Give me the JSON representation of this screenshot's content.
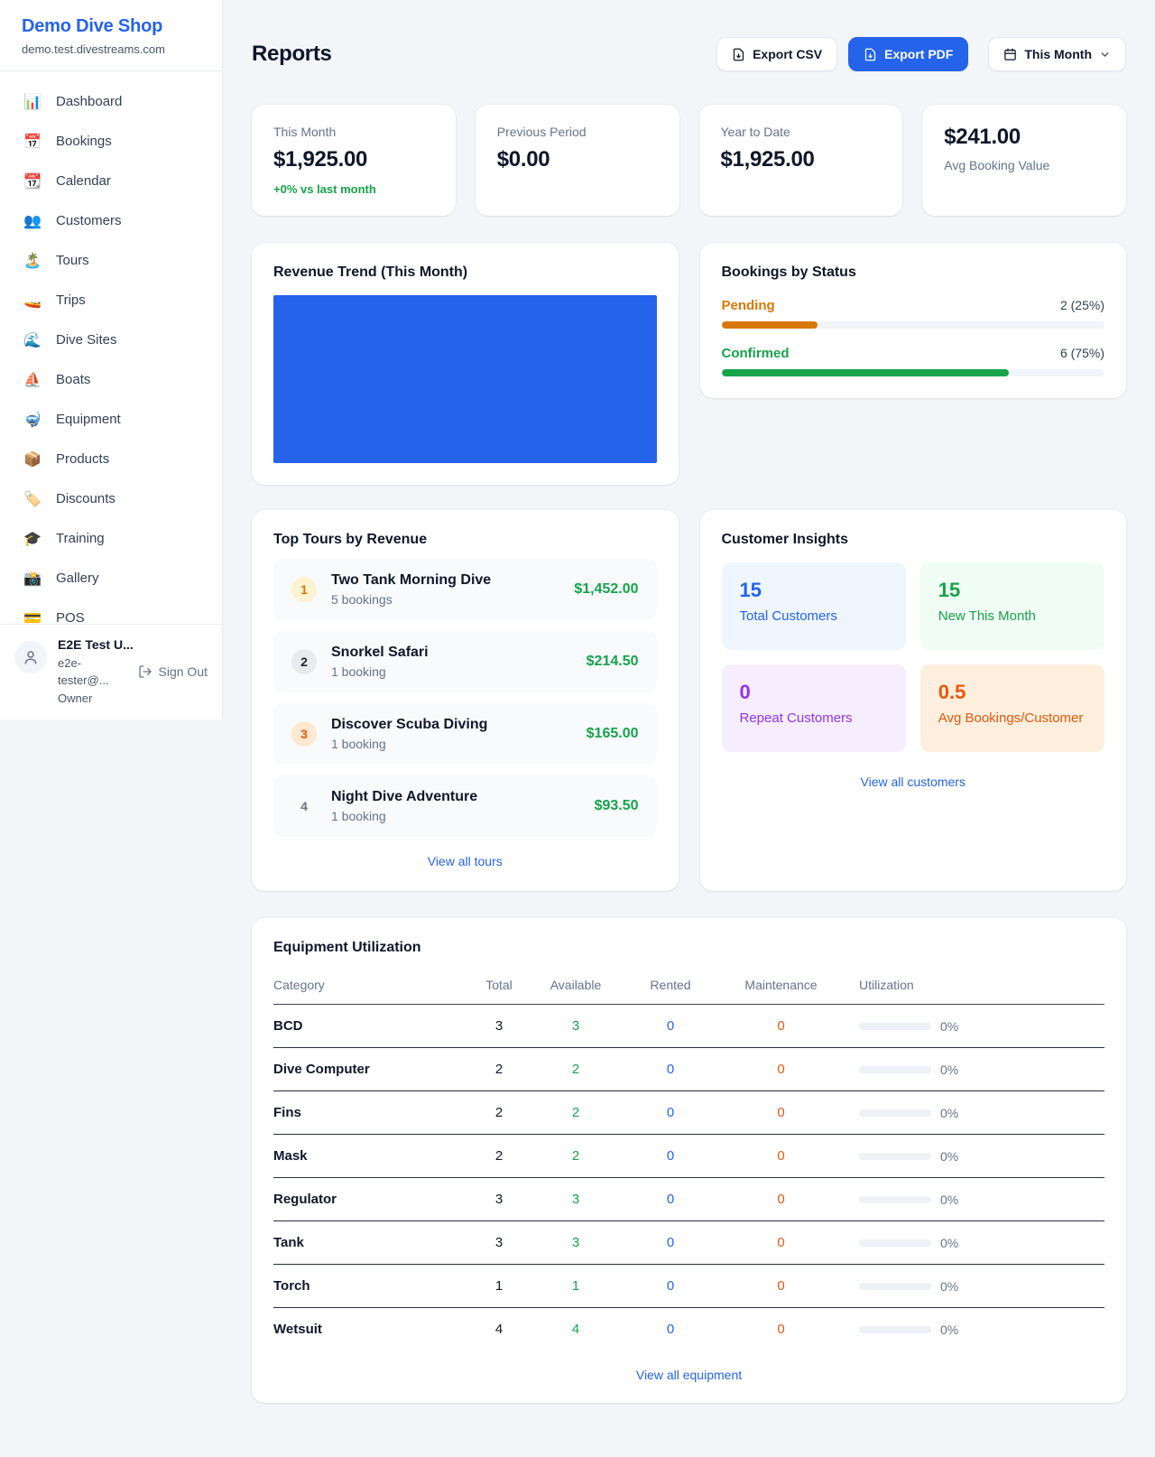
{
  "brand": {
    "name": "Demo Dive Shop",
    "domain": "demo.test.divestreams.com"
  },
  "sidebar": {
    "items": [
      {
        "label": "Dashboard",
        "icon": "bar-chart-icon",
        "glyph": "📊"
      },
      {
        "label": "Bookings",
        "icon": "calendar-icon",
        "glyph": "📅"
      },
      {
        "label": "Calendar",
        "icon": "tear-off-calendar-icon",
        "glyph": "📆"
      },
      {
        "label": "Customers",
        "icon": "people-icon",
        "glyph": "👥"
      },
      {
        "label": "Tours",
        "icon": "desert-island-icon",
        "glyph": "🏝️"
      },
      {
        "label": "Trips",
        "icon": "speedboat-icon",
        "glyph": "🚤"
      },
      {
        "label": "Dive Sites",
        "icon": "wave-icon",
        "glyph": "🌊"
      },
      {
        "label": "Boats",
        "icon": "sailboat-icon",
        "glyph": "⛵"
      },
      {
        "label": "Equipment",
        "icon": "diving-mask-icon",
        "glyph": "🤿"
      },
      {
        "label": "Products",
        "icon": "package-icon",
        "glyph": "📦"
      },
      {
        "label": "Discounts",
        "icon": "tag-icon",
        "glyph": "🏷️"
      },
      {
        "label": "Training",
        "icon": "graduation-cap-icon",
        "glyph": "🎓"
      },
      {
        "label": "Gallery",
        "icon": "camera-flash-icon",
        "glyph": "📸"
      },
      {
        "label": "POS",
        "icon": "credit-card-icon",
        "glyph": "💳"
      }
    ],
    "user": {
      "name": "E2E Test U...",
      "email": "e2e-tester@...",
      "role": "Owner",
      "sign_out_label": "Sign Out"
    }
  },
  "header": {
    "title": "Reports",
    "export_csv_label": "Export CSV",
    "export_pdf_label": "Export PDF",
    "period_label": "This Month"
  },
  "stat_cards": [
    {
      "label": "This Month",
      "value": "$1,925.00",
      "delta": "+0% vs last month"
    },
    {
      "label": "Previous Period",
      "value": "$0.00"
    },
    {
      "label": "Year to Date",
      "value": "$1,925.00"
    },
    {
      "label": "Avg Booking Value",
      "value": "$241.00",
      "value_first": true
    }
  ],
  "revenue_trend": {
    "title": "Revenue Trend (This Month)",
    "bar_color": "#2563eb"
  },
  "bookings_by_status": {
    "title": "Bookings by Status",
    "rows": [
      {
        "label": "Pending",
        "count_text": "2 (25%)",
        "pct": 25,
        "color": "#d97706"
      },
      {
        "label": "Confirmed",
        "count_text": "6 (75%)",
        "pct": 75,
        "color": "#16a34a"
      }
    ]
  },
  "top_tours": {
    "title": "Top Tours by Revenue",
    "view_all_label": "View all tours",
    "rows": [
      {
        "rank": "1",
        "name": "Two Tank Morning Dive",
        "bookings": "5 bookings",
        "revenue": "$1,452.00",
        "badge_bg": "#fdf3d0",
        "badge_color": "#d97706"
      },
      {
        "rank": "2",
        "name": "Snorkel Safari",
        "bookings": "1 booking",
        "revenue": "$214.50",
        "badge_bg": "#e8eaee",
        "badge_color": "#1f2937"
      },
      {
        "rank": "3",
        "name": "Discover Scuba Diving",
        "bookings": "1 booking",
        "revenue": "$165.00",
        "badge_bg": "#ffe8d1",
        "badge_color": "#ea580c"
      },
      {
        "rank": "4",
        "name": "Night Dive Adventure",
        "bookings": "1 booking",
        "revenue": "$93.50",
        "badge_bg": "transparent",
        "badge_color": "#6b7280"
      }
    ]
  },
  "customer_insights": {
    "title": "Customer Insights",
    "view_all_label": "View all customers",
    "boxes": [
      {
        "value": "15",
        "label": "Total Customers",
        "bg": "#eff6ff",
        "fg": "#2563eb"
      },
      {
        "value": "15",
        "label": "New This Month",
        "bg": "#f0fdf4",
        "fg": "#16a34a"
      },
      {
        "value": "0",
        "label": "Repeat Customers",
        "bg": "#f6eefe",
        "fg": "#9333ea"
      },
      {
        "value": "0.5",
        "label": "Avg Bookings/Customer",
        "bg": "#feeedd",
        "fg": "#ea580c"
      }
    ]
  },
  "equipment_utilization": {
    "title": "Equipment Utilization",
    "view_all_label": "View all equipment",
    "columns": [
      "Category",
      "Total",
      "Available",
      "Rented",
      "Maintenance",
      "Utilization"
    ],
    "rows": [
      {
        "category": "BCD",
        "total": "3",
        "available": "3",
        "rented": "0",
        "maintenance": "0",
        "utilization": "0%",
        "pct": 0
      },
      {
        "category": "Dive Computer",
        "total": "2",
        "available": "2",
        "rented": "0",
        "maintenance": "0",
        "utilization": "0%",
        "pct": 0
      },
      {
        "category": "Fins",
        "total": "2",
        "available": "2",
        "rented": "0",
        "maintenance": "0",
        "utilization": "0%",
        "pct": 0
      },
      {
        "category": "Mask",
        "total": "2",
        "available": "2",
        "rented": "0",
        "maintenance": "0",
        "utilization": "0%",
        "pct": 0
      },
      {
        "category": "Regulator",
        "total": "3",
        "available": "3",
        "rented": "0",
        "maintenance": "0",
        "utilization": "0%",
        "pct": 0
      },
      {
        "category": "Tank",
        "total": "3",
        "available": "3",
        "rented": "0",
        "maintenance": "0",
        "utilization": "0%",
        "pct": 0
      },
      {
        "category": "Torch",
        "total": "1",
        "available": "1",
        "rented": "0",
        "maintenance": "0",
        "utilization": "0%",
        "pct": 0
      },
      {
        "category": "Wetsuit",
        "total": "4",
        "available": "4",
        "rented": "0",
        "maintenance": "0",
        "utilization": "0%",
        "pct": 0
      }
    ]
  },
  "colors": {
    "accent": "#2563eb",
    "success": "#16a34a",
    "warning": "#d97706",
    "deep_orange": "#ea580c",
    "purple": "#9333ea"
  }
}
